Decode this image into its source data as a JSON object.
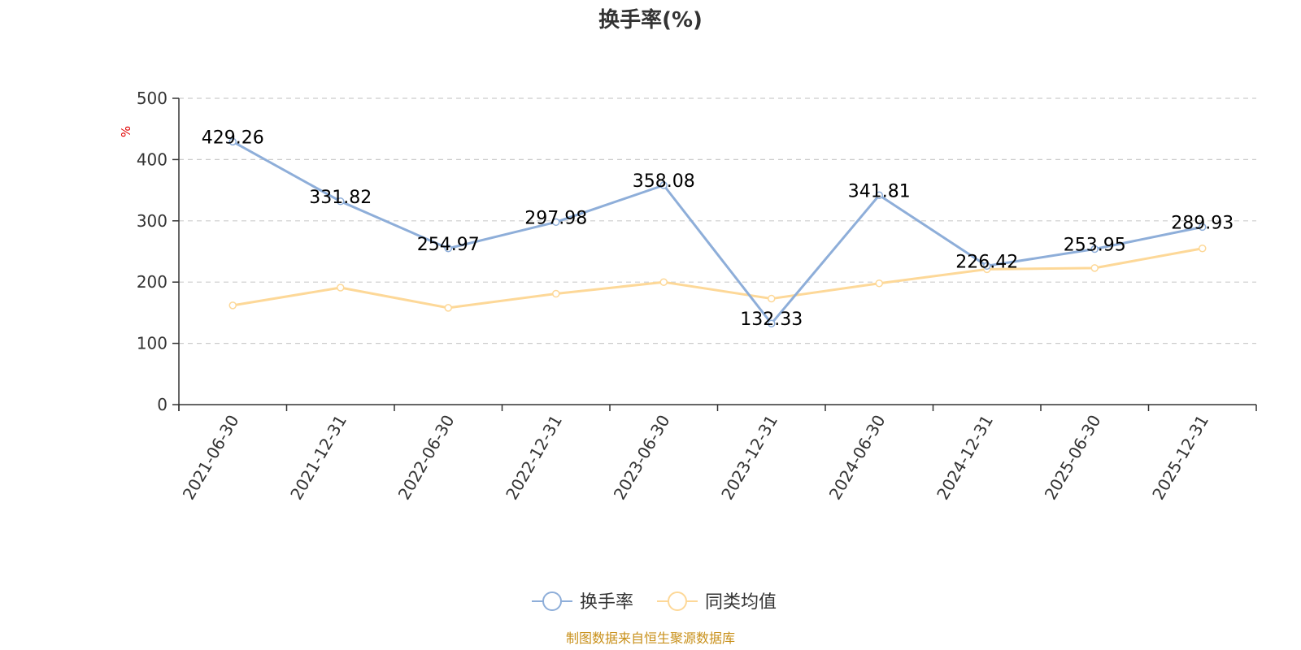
{
  "chart_data": {
    "type": "line",
    "title": "换手率(%)",
    "ylabel": "%",
    "xlabel": "",
    "ylim": [
      0,
      500
    ],
    "yticks": [
      0,
      100,
      200,
      300,
      400,
      500
    ],
    "grid": true,
    "legend_position": "bottom-center",
    "categories": [
      "2021-06-30",
      "2021-12-31",
      "2022-06-30",
      "2022-12-31",
      "2023-06-30",
      "2023-12-31",
      "2024-06-30",
      "2024-12-31",
      "2025-06-30",
      "2025-12-31"
    ],
    "series": [
      {
        "name": "换手率",
        "color": "#8eaed9",
        "values": [
          429.26,
          331.82,
          254.97,
          297.98,
          358.08,
          132.33,
          341.81,
          226.42,
          253.95,
          289.93
        ],
        "labels": [
          "429.26",
          "331.82",
          "254.97",
          "297.98",
          "358.08",
          "132.33",
          "341.81",
          "226.42",
          "253.95",
          "289.93"
        ]
      },
      {
        "name": "同类均值",
        "color": "#fdd898",
        "values": [
          162,
          191,
          158,
          181,
          200,
          173,
          198,
          221,
          223,
          255
        ]
      }
    ]
  },
  "source_text": "制图数据来自恒生聚源数据库",
  "colors": {
    "axis": "#333333",
    "grid": "#cccccc",
    "source": "#c8901a",
    "unit": "#e00000"
  }
}
